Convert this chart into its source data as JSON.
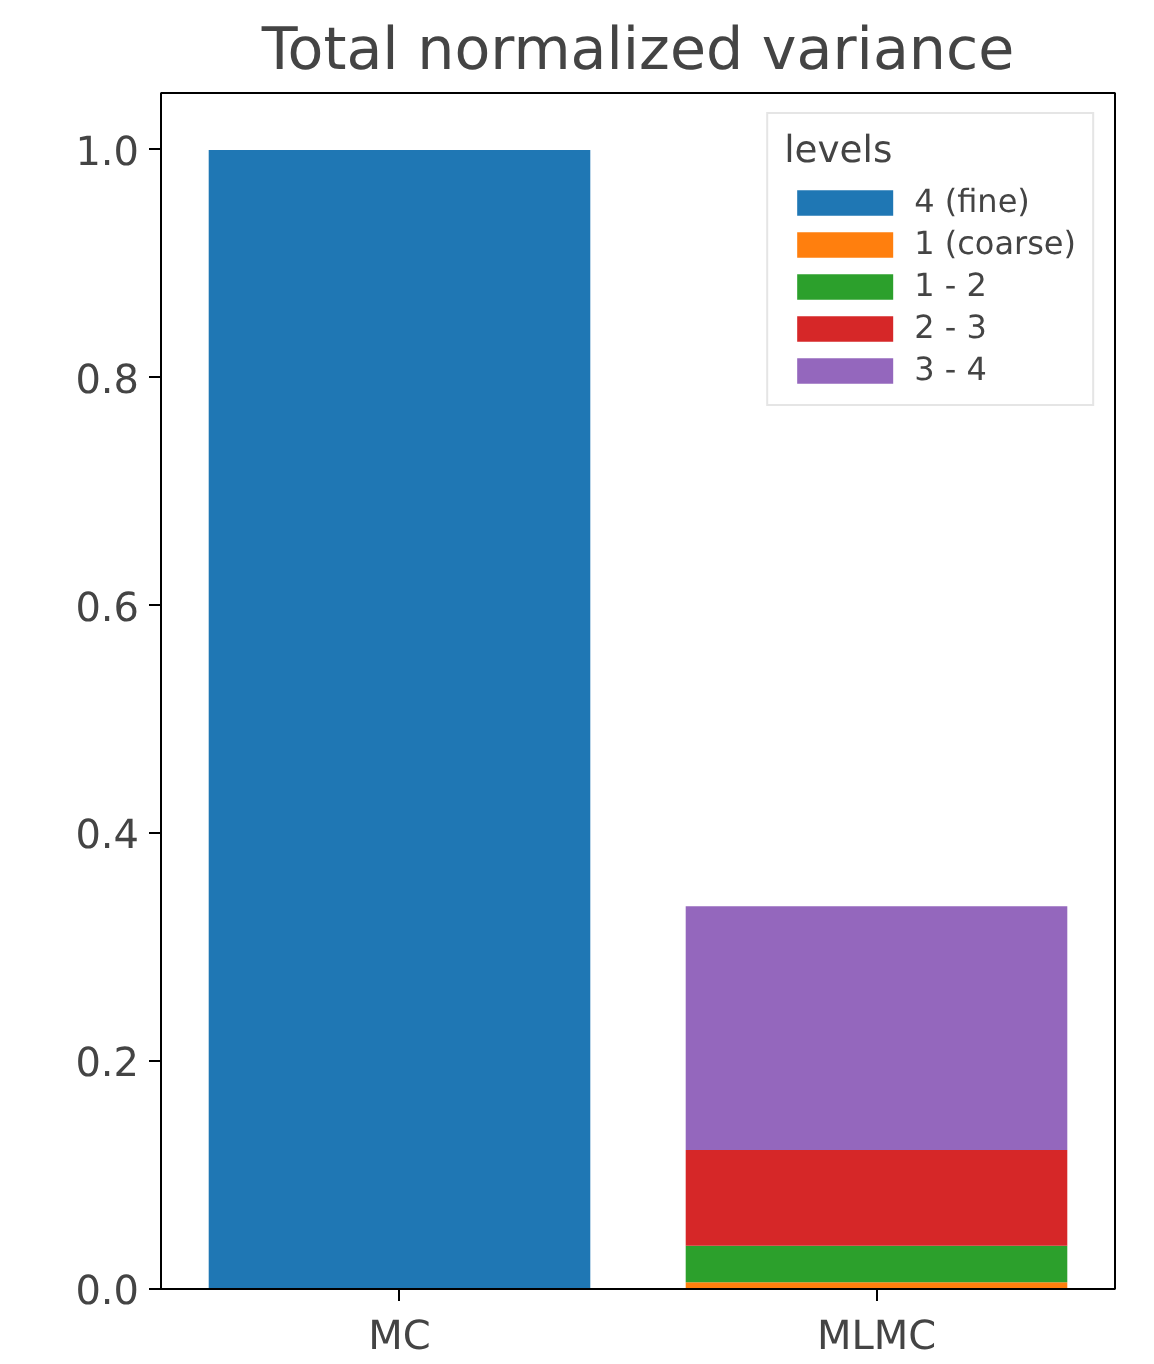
{
  "chart_data": {
    "type": "bar",
    "title": "Total normalized variance",
    "legend_title": "levels",
    "categories": [
      "MC",
      "MLMC"
    ],
    "stacked": true,
    "series": [
      {
        "name": "4 (fine)",
        "color": "#1f77b4",
        "values": [
          1.0,
          null
        ]
      },
      {
        "name": "1 (coarse)",
        "color": "#ff7f0e",
        "values": [
          null,
          0.006
        ]
      },
      {
        "name": "1 - 2",
        "color": "#2ca02c",
        "values": [
          null,
          0.032
        ]
      },
      {
        "name": "2 - 3",
        "color": "#d62728",
        "values": [
          null,
          0.084
        ]
      },
      {
        "name": "3 - 4",
        "color": "#9467bd",
        "values": [
          null,
          0.214
        ]
      }
    ],
    "ylim": [
      0,
      1.05
    ],
    "yticks": [
      {
        "value": 0,
        "label": "0.0"
      },
      {
        "value": 0.2,
        "label": "0.2"
      },
      {
        "value": 0.4,
        "label": "0.4"
      },
      {
        "value": 0.6,
        "label": "0.6"
      },
      {
        "value": 0.8,
        "label": "0.8"
      },
      {
        "value": 1.0,
        "label": "1.0"
      }
    ],
    "grid": false,
    "legend": "top right"
  }
}
